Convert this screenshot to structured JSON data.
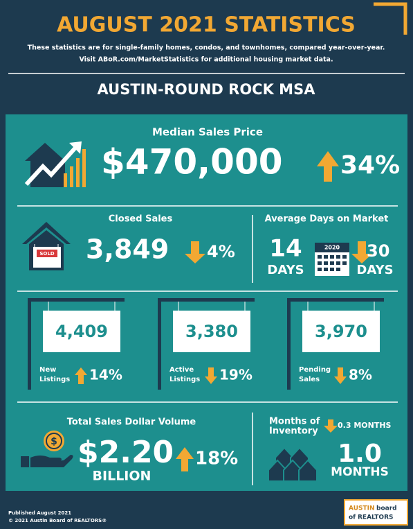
{
  "header": {
    "title": "AUGUST 2021 STATISTICS",
    "subtitle": [
      "These statistics are for single-family homes, condos, and townhomes, compared year-over-year.",
      "Visit ABoR.com/MarketStatistics for additional housing market data."
    ],
    "region": "AUSTIN-ROUND ROCK MSA"
  },
  "median_price": {
    "label": "Median Sales Price",
    "value": "$470,000",
    "change": "34%"
  },
  "closed_sales": {
    "label": "Closed Sales",
    "sign": "SOLD",
    "value": "3,849",
    "change": "4%"
  },
  "days_on_market": {
    "label": "Average Days on Market",
    "value": "14",
    "unit": "DAYS",
    "calendar_year": "2020",
    "prior_value": "30",
    "prior_unit": "DAYS"
  },
  "listings": [
    {
      "value": "4,409",
      "label": [
        "New",
        "Listings"
      ],
      "change": "14%"
    },
    {
      "value": "3,380",
      "label": [
        "Active",
        "Listings"
      ],
      "change": "19%"
    },
    {
      "value": "3,970",
      "label": [
        "Pending",
        "Sales"
      ],
      "change": "8%"
    }
  ],
  "dollar_volume": {
    "label": "Total Sales Dollar Volume",
    "value": "$2.20",
    "unit": "BILLION",
    "change": "18%"
  },
  "inventory": {
    "label": [
      "Months of",
      "Inventory"
    ],
    "change": "0.3 MONTHS",
    "value": "1.0",
    "unit": "MONTHS"
  },
  "footer": {
    "published": "Published August 2021",
    "copyright": "© 2021 Austin Board of REALTORS®",
    "logo": [
      "AUSTIN",
      "board",
      "of",
      "REALTORS"
    ]
  }
}
